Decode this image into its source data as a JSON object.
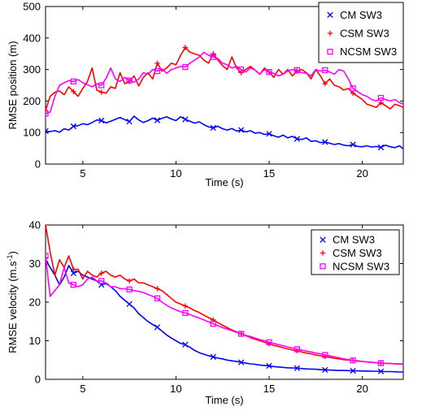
{
  "chart_data": [
    {
      "type": "line",
      "xlabel": "Time (s)",
      "ylabel": "RMSE position (m)",
      "xlim": [
        3,
        22.2
      ],
      "ylim": [
        0,
        500
      ],
      "xticks": [
        5,
        10,
        15,
        20
      ],
      "yticks": [
        0,
        100,
        200,
        300,
        400,
        500
      ],
      "grid": false,
      "legend_position": "top-right",
      "series": [
        {
          "name": "CM SW3",
          "color": "#0000ff",
          "marker": "x",
          "marker_every": 6,
          "x": [
            3.0,
            3.25,
            3.5,
            3.75,
            4.0,
            4.25,
            4.5,
            4.75,
            5.0,
            5.25,
            5.5,
            5.75,
            6.0,
            6.25,
            6.5,
            6.75,
            7.0,
            7.25,
            7.5,
            7.75,
            8.0,
            8.25,
            8.5,
            8.75,
            9.0,
            9.25,
            9.5,
            9.75,
            10.0,
            10.25,
            10.5,
            10.75,
            11.0,
            11.25,
            11.5,
            11.75,
            12.0,
            12.25,
            12.5,
            12.75,
            13.0,
            13.25,
            13.5,
            13.75,
            14.0,
            14.25,
            14.5,
            14.75,
            15.0,
            15.25,
            15.5,
            15.75,
            16.0,
            16.25,
            16.5,
            16.75,
            17.0,
            17.25,
            17.5,
            17.75,
            18.0,
            18.25,
            18.5,
            18.75,
            19.0,
            19.25,
            19.5,
            19.75,
            20.0,
            20.25,
            20.5,
            20.75,
            21.0,
            21.25,
            21.5,
            21.75,
            22.0,
            22.2
          ],
          "values": [
            105,
            103,
            106,
            101,
            112,
            108,
            120,
            122,
            128,
            125,
            132,
            140,
            138,
            131,
            136,
            142,
            148,
            141,
            135,
            152,
            140,
            132,
            138,
            146,
            139,
            145,
            150,
            143,
            138,
            150,
            142,
            136,
            130,
            134,
            125,
            118,
            115,
            120,
            112,
            108,
            113,
            105,
            108,
            102,
            106,
            98,
            100,
            94,
            96,
            90,
            85,
            92,
            83,
            88,
            80,
            78,
            83,
            72,
            74,
            68,
            70,
            66,
            62,
            65,
            60,
            58,
            62,
            56,
            55,
            58,
            54,
            56,
            53,
            60,
            55,
            52,
            58,
            48
          ]
        },
        {
          "name": "CSM SW3",
          "color": "#ff0000",
          "marker": "+",
          "marker_every": 6,
          "x": [
            3.0,
            3.25,
            3.5,
            3.75,
            4.0,
            4.25,
            4.5,
            4.75,
            5.0,
            5.25,
            5.5,
            5.75,
            6.0,
            6.25,
            6.5,
            6.75,
            7.0,
            7.25,
            7.5,
            7.75,
            8.0,
            8.25,
            8.5,
            8.75,
            9.0,
            9.25,
            9.5,
            9.75,
            10.0,
            10.25,
            10.5,
            10.75,
            11.0,
            11.25,
            11.5,
            11.75,
            12.0,
            12.25,
            12.5,
            12.75,
            13.0,
            13.25,
            13.5,
            13.75,
            14.0,
            14.25,
            14.5,
            14.75,
            15.0,
            15.25,
            15.5,
            15.75,
            16.0,
            16.25,
            16.5,
            16.75,
            17.0,
            17.25,
            17.5,
            17.75,
            18.0,
            18.25,
            18.5,
            18.75,
            19.0,
            19.25,
            19.5,
            19.75,
            20.0,
            20.25,
            20.5,
            20.75,
            21.0,
            21.25,
            21.5,
            21.75,
            22.0,
            22.2
          ],
          "values": [
            170,
            215,
            228,
            232,
            220,
            245,
            230,
            215,
            240,
            262,
            305,
            235,
            228,
            225,
            245,
            240,
            290,
            255,
            262,
            280,
            248,
            275,
            290,
            270,
            320,
            295,
            305,
            320,
            315,
            345,
            370,
            355,
            350,
            345,
            330,
            320,
            350,
            330,
            312,
            300,
            340,
            305,
            290,
            300,
            310,
            298,
            285,
            305,
            292,
            275,
            300,
            285,
            300,
            280,
            295,
            300,
            290,
            270,
            300,
            280,
            255,
            270,
            250,
            245,
            235,
            240,
            225,
            215,
            205,
            190,
            185,
            180,
            195,
            185,
            175,
            190,
            185,
            180
          ]
        },
        {
          "name": "NCSM SW3",
          "color": "#ff00ff",
          "marker": "square",
          "marker_every": 6,
          "x": [
            3.0,
            3.25,
            3.5,
            3.75,
            4.0,
            4.25,
            4.5,
            4.75,
            5.0,
            5.25,
            5.5,
            5.75,
            6.0,
            6.25,
            6.5,
            6.75,
            7.0,
            7.25,
            7.5,
            7.75,
            8.0,
            8.25,
            8.5,
            8.75,
            9.0,
            9.25,
            9.5,
            9.75,
            10.0,
            10.25,
            10.5,
            10.75,
            11.0,
            11.25,
            11.5,
            11.75,
            12.0,
            12.25,
            12.5,
            12.75,
            13.0,
            13.25,
            13.5,
            13.75,
            14.0,
            14.25,
            14.5,
            14.75,
            15.0,
            15.25,
            15.5,
            15.75,
            16.0,
            16.25,
            16.5,
            16.75,
            17.0,
            17.25,
            17.5,
            17.75,
            18.0,
            18.25,
            18.5,
            18.75,
            19.0,
            19.25,
            19.5,
            19.75,
            20.0,
            20.25,
            20.5,
            20.75,
            21.0,
            21.25,
            21.5,
            21.75,
            22.0,
            22.2
          ],
          "values": [
            160,
            165,
            215,
            250,
            258,
            265,
            262,
            268,
            258,
            252,
            245,
            255,
            250,
            272,
            305,
            270,
            262,
            275,
            265,
            260,
            270,
            290,
            285,
            300,
            295,
            302,
            288,
            300,
            305,
            310,
            308,
            320,
            330,
            340,
            355,
            345,
            340,
            335,
            320,
            315,
            305,
            310,
            300,
            292,
            305,
            298,
            285,
            300,
            292,
            288,
            280,
            285,
            295,
            300,
            298,
            290,
            288,
            280,
            300,
            295,
            298,
            292,
            285,
            300,
            295,
            270,
            240,
            230,
            220,
            215,
            205,
            200,
            210,
            205,
            200,
            205,
            195,
            190
          ]
        }
      ]
    },
    {
      "type": "line",
      "xlabel": "Time (s)",
      "ylabel": "RMSE velocity (m.s",
      "ylabel_superscript": "-1",
      "ylabel_suffix": ")",
      "xlim": [
        3,
        22.2
      ],
      "ylim": [
        0,
        40
      ],
      "xticks": [
        5,
        10,
        15,
        20
      ],
      "yticks": [
        0,
        10,
        20,
        30,
        40
      ],
      "grid": false,
      "legend_position": "top-right",
      "series": [
        {
          "name": "CM SW3",
          "color": "#0000ff",
          "marker": "x",
          "marker_every": 6,
          "x": [
            3.0,
            3.25,
            3.5,
            3.75,
            4.0,
            4.25,
            4.5,
            4.75,
            5.0,
            5.25,
            5.5,
            5.75,
            6.0,
            6.25,
            6.5,
            6.75,
            7.0,
            7.25,
            7.5,
            7.75,
            8.0,
            8.25,
            8.5,
            8.75,
            9.0,
            9.25,
            9.5,
            9.75,
            10.0,
            10.25,
            10.5,
            10.75,
            11.0,
            11.25,
            11.5,
            11.75,
            12.0,
            12.25,
            12.5,
            12.75,
            13.0,
            13.25,
            13.5,
            13.75,
            14.0,
            14.25,
            14.5,
            14.75,
            15.0,
            15.25,
            15.5,
            15.75,
            16.0,
            16.25,
            16.5,
            16.75,
            17.0,
            17.25,
            17.5,
            17.75,
            18.0,
            18.25,
            18.5,
            18.75,
            19.0,
            19.25,
            19.5,
            19.75,
            20.0,
            20.25,
            20.5,
            20.75,
            21.0,
            21.25,
            21.5,
            21.75,
            22.0,
            22.2
          ],
          "values": [
            31,
            29,
            27,
            24.5,
            26.5,
            29.5,
            27.5,
            28,
            27,
            26.5,
            26,
            25.5,
            24.5,
            24.8,
            24,
            23,
            21.5,
            20.5,
            19.5,
            18.5,
            17,
            16,
            15,
            14.2,
            13.5,
            12.5,
            11.5,
            10.7,
            10,
            9.3,
            9,
            8.3,
            7.5,
            6.9,
            6.5,
            6.1,
            5.8,
            5.5,
            5.3,
            5,
            4.8,
            4.6,
            4.4,
            4.2,
            4,
            3.9,
            3.7,
            3.6,
            3.5,
            3.3,
            3.2,
            3.1,
            3,
            2.95,
            2.9,
            2.8,
            2.7,
            2.65,
            2.6,
            2.5,
            2.45,
            2.4,
            2.35,
            2.3,
            2.3,
            2.25,
            2.2,
            2.2,
            2.15,
            2.15,
            2.1,
            2.1,
            2.05,
            2,
            2,
            1.95,
            1.9,
            1.9
          ]
        },
        {
          "name": "CSM SW3",
          "color": "#ff0000",
          "marker": "+",
          "marker_every": 6,
          "x": [
            3.0,
            3.25,
            3.5,
            3.75,
            4.0,
            4.25,
            4.5,
            4.75,
            5.0,
            5.25,
            5.5,
            5.75,
            6.0,
            6.25,
            6.5,
            6.75,
            7.0,
            7.25,
            7.5,
            7.75,
            8.0,
            8.25,
            8.5,
            8.75,
            9.0,
            9.25,
            9.5,
            9.75,
            10.0,
            10.25,
            10.5,
            10.75,
            11.0,
            11.25,
            11.5,
            11.75,
            12.0,
            12.25,
            12.5,
            12.75,
            13.0,
            13.25,
            13.5,
            13.75,
            14.0,
            14.25,
            14.5,
            14.75,
            15.0,
            15.25,
            15.5,
            15.75,
            16.0,
            16.25,
            16.5,
            16.75,
            17.0,
            17.25,
            17.5,
            17.75,
            18.0,
            18.25,
            18.5,
            18.75,
            19.0,
            19.25,
            19.5,
            19.75,
            20.0,
            20.25,
            20.5,
            20.75,
            21.0,
            21.25,
            21.5,
            21.75,
            22.0,
            22.2
          ],
          "values": [
            40,
            33,
            27,
            31,
            29,
            32,
            28.5,
            28.5,
            26,
            28,
            27,
            26.5,
            27.5,
            28,
            27,
            26.5,
            27,
            26,
            25.5,
            26,
            25,
            25,
            24.5,
            24,
            23.5,
            23,
            22,
            21,
            20,
            19.5,
            19,
            18.5,
            17.8,
            17.3,
            16.6,
            16,
            15.4,
            14.7,
            14,
            13.4,
            12.8,
            12.3,
            11.8,
            11.3,
            10.8,
            10.4,
            10,
            9.6,
            9.2,
            8.8,
            8.5,
            8.2,
            7.9,
            7.6,
            7.4,
            7.1,
            6.8,
            6.6,
            6.3,
            6.1,
            5.9,
            5.7,
            5.5,
            5.3,
            5.1,
            5,
            4.9,
            4.8,
            4.6,
            4.5,
            4.4,
            4.3,
            4.2,
            4.15,
            4.1,
            4.0,
            3.95,
            3.9
          ]
        },
        {
          "name": "NCSM SW3",
          "color": "#ff00ff",
          "marker": "square",
          "marker_every": 6,
          "x": [
            3.0,
            3.25,
            3.5,
            3.75,
            4.0,
            4.25,
            4.5,
            4.75,
            5.0,
            5.25,
            5.5,
            5.75,
            6.0,
            6.25,
            6.5,
            6.75,
            7.0,
            7.25,
            7.5,
            7.75,
            8.0,
            8.25,
            8.5,
            8.75,
            9.0,
            9.25,
            9.5,
            9.75,
            10.0,
            10.25,
            10.5,
            10.75,
            11.0,
            11.25,
            11.5,
            11.75,
            12.0,
            12.25,
            12.5,
            12.75,
            13.0,
            13.25,
            13.5,
            13.75,
            14.0,
            14.25,
            14.5,
            14.75,
            15.0,
            15.25,
            15.5,
            15.75,
            16.0,
            16.25,
            16.5,
            16.75,
            17.0,
            17.25,
            17.5,
            17.75,
            18.0,
            18.25,
            18.5,
            18.75,
            19.0,
            19.25,
            19.5,
            19.75,
            20.0,
            20.25,
            20.5,
            20.75,
            21.0,
            21.25,
            21.5,
            21.75,
            22.0,
            22.2
          ],
          "values": [
            32,
            21.5,
            23,
            24.5,
            29,
            25,
            24.5,
            24,
            24.5,
            26,
            26.5,
            25.5,
            25.5,
            25,
            24,
            24,
            23.5,
            23.5,
            23.3,
            23,
            22.8,
            22.5,
            22,
            21.5,
            21,
            20,
            19.2,
            18.5,
            18,
            17.5,
            17.2,
            16.8,
            16.3,
            15.9,
            15.4,
            14.9,
            14.4,
            13.9,
            13.4,
            13,
            12.6,
            12.2,
            11.8,
            11.4,
            11.1,
            10.7,
            10.3,
            10,
            9.6,
            9.3,
            9,
            8.7,
            8.4,
            8.1,
            7.8,
            7.6,
            7.3,
            7.1,
            6.8,
            6.6,
            6.3,
            6.1,
            5.8,
            5.6,
            5.3,
            5.1,
            4.9,
            4.7,
            4.6,
            4.5,
            4.4,
            4.3,
            4.2,
            4.1,
            4.1,
            4.05,
            4.0,
            4.0
          ]
        }
      ]
    }
  ]
}
